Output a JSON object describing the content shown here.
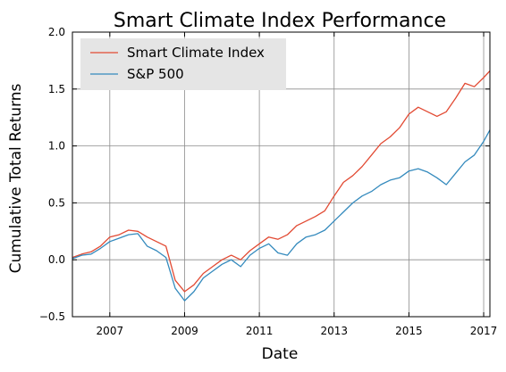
{
  "chart_data": {
    "type": "line",
    "title": "Smart Climate Index Performance",
    "xlabel": "Date",
    "ylabel": "Cumulative Total Returns",
    "xlim": [
      "2006-01",
      "2017-03"
    ],
    "ylim": [
      -0.5,
      2.0
    ],
    "x_ticks": [
      2007,
      2009,
      2011,
      2013,
      2015,
      2017
    ],
    "x_tick_labels": [
      "2007",
      "2009",
      "2011",
      "2013",
      "2015",
      "2017"
    ],
    "y_ticks": [
      -0.5,
      0.0,
      0.5,
      1.0,
      1.5,
      2.0
    ],
    "y_tick_labels": [
      "−0.5",
      "0.0",
      "0.5",
      "1.0",
      "1.5",
      "2.0"
    ],
    "grid": true,
    "legend_position": "top-left",
    "series": [
      {
        "name": "Smart Climate Index",
        "color": "#e24a33",
        "points": [
          [
            "2006-01",
            0.02
          ],
          [
            "2006-04",
            0.05
          ],
          [
            "2006-07",
            0.07
          ],
          [
            "2006-10",
            0.12
          ],
          [
            "2007-01",
            0.2
          ],
          [
            "2007-04",
            0.22
          ],
          [
            "2007-07",
            0.26
          ],
          [
            "2007-10",
            0.25
          ],
          [
            "2008-01",
            0.2
          ],
          [
            "2008-04",
            0.16
          ],
          [
            "2008-07",
            0.12
          ],
          [
            "2008-10",
            -0.18
          ],
          [
            "2009-01",
            -0.28
          ],
          [
            "2009-04",
            -0.22
          ],
          [
            "2009-07",
            -0.12
          ],
          [
            "2009-10",
            -0.06
          ],
          [
            "2010-01",
            0.0
          ],
          [
            "2010-04",
            0.04
          ],
          [
            "2010-07",
            0.0
          ],
          [
            "2010-10",
            0.08
          ],
          [
            "2011-01",
            0.14
          ],
          [
            "2011-04",
            0.2
          ],
          [
            "2011-07",
            0.18
          ],
          [
            "2011-10",
            0.22
          ],
          [
            "2012-01",
            0.3
          ],
          [
            "2012-04",
            0.34
          ],
          [
            "2012-07",
            0.38
          ],
          [
            "2012-10",
            0.43
          ],
          [
            "2013-01",
            0.56
          ],
          [
            "2013-04",
            0.68
          ],
          [
            "2013-07",
            0.74
          ],
          [
            "2013-10",
            0.82
          ],
          [
            "2014-01",
            0.92
          ],
          [
            "2014-04",
            1.02
          ],
          [
            "2014-07",
            1.08
          ],
          [
            "2014-10",
            1.16
          ],
          [
            "2015-01",
            1.28
          ],
          [
            "2015-04",
            1.34
          ],
          [
            "2015-07",
            1.3
          ],
          [
            "2015-10",
            1.26
          ],
          [
            "2016-01",
            1.3
          ],
          [
            "2016-04",
            1.42
          ],
          [
            "2016-07",
            1.55
          ],
          [
            "2016-10",
            1.52
          ],
          [
            "2017-01",
            1.6
          ],
          [
            "2017-03",
            1.66
          ]
        ]
      },
      {
        "name": "S&P 500",
        "color": "#348abd",
        "points": [
          [
            "2006-01",
            0.01
          ],
          [
            "2006-04",
            0.04
          ],
          [
            "2006-07",
            0.05
          ],
          [
            "2006-10",
            0.1
          ],
          [
            "2007-01",
            0.16
          ],
          [
            "2007-04",
            0.19
          ],
          [
            "2007-07",
            0.22
          ],
          [
            "2007-10",
            0.23
          ],
          [
            "2008-01",
            0.12
          ],
          [
            "2008-04",
            0.08
          ],
          [
            "2008-07",
            0.02
          ],
          [
            "2008-10",
            -0.25
          ],
          [
            "2009-01",
            -0.36
          ],
          [
            "2009-04",
            -0.28
          ],
          [
            "2009-07",
            -0.16
          ],
          [
            "2009-10",
            -0.1
          ],
          [
            "2010-01",
            -0.04
          ],
          [
            "2010-04",
            0.0
          ],
          [
            "2010-07",
            -0.06
          ],
          [
            "2010-10",
            0.04
          ],
          [
            "2011-01",
            0.1
          ],
          [
            "2011-04",
            0.14
          ],
          [
            "2011-07",
            0.06
          ],
          [
            "2011-10",
            0.04
          ],
          [
            "2012-01",
            0.14
          ],
          [
            "2012-04",
            0.2
          ],
          [
            "2012-07",
            0.22
          ],
          [
            "2012-10",
            0.26
          ],
          [
            "2013-01",
            0.34
          ],
          [
            "2013-04",
            0.42
          ],
          [
            "2013-07",
            0.5
          ],
          [
            "2013-10",
            0.56
          ],
          [
            "2014-01",
            0.6
          ],
          [
            "2014-04",
            0.66
          ],
          [
            "2014-07",
            0.7
          ],
          [
            "2014-10",
            0.72
          ],
          [
            "2015-01",
            0.78
          ],
          [
            "2015-04",
            0.8
          ],
          [
            "2015-07",
            0.77
          ],
          [
            "2015-10",
            0.72
          ],
          [
            "2016-01",
            0.66
          ],
          [
            "2016-04",
            0.76
          ],
          [
            "2016-07",
            0.86
          ],
          [
            "2016-10",
            0.92
          ],
          [
            "2017-01",
            1.04
          ],
          [
            "2017-03",
            1.14
          ]
        ]
      }
    ]
  }
}
